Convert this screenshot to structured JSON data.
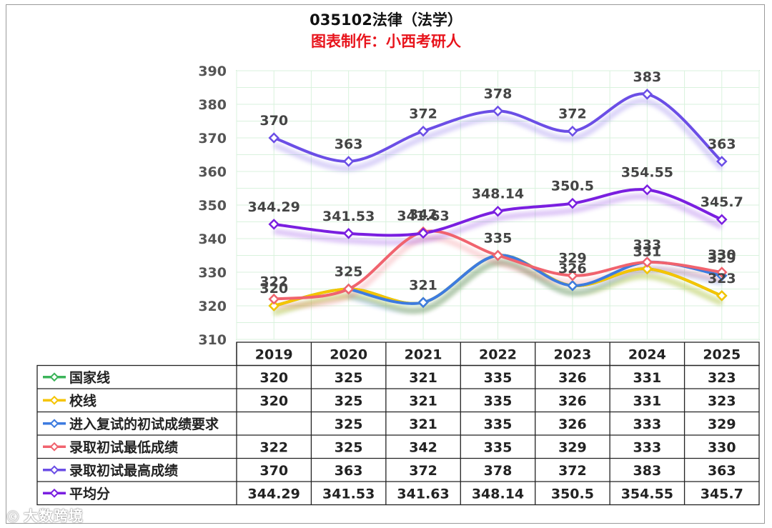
{
  "title": "035102法律（法学）",
  "subtitle": "图表制作：小西考研人",
  "watermark": "大数跨境",
  "chart_data": {
    "type": "line",
    "categories": [
      "2019",
      "2020",
      "2021",
      "2022",
      "2023",
      "2024",
      "2025"
    ],
    "ylim": [
      310,
      390
    ],
    "yticks": [
      310,
      320,
      330,
      340,
      350,
      360,
      370,
      380,
      390
    ],
    "grid": true,
    "legend": "data-table-below",
    "series": [
      {
        "name": "国家线",
        "color": "#3cb45a",
        "values": [
          320,
          325,
          321,
          335,
          326,
          331,
          323
        ],
        "labels": [
          null,
          null,
          null,
          null,
          null,
          null,
          null
        ]
      },
      {
        "name": "校线",
        "color": "#f5c400",
        "values": [
          320,
          325,
          321,
          335,
          326,
          331,
          323
        ],
        "labels": [
          "320",
          null,
          null,
          null,
          null,
          "331",
          "323"
        ]
      },
      {
        "name": "进入复试的初试成绩要求",
        "color": "#3d7be0",
        "values": [
          null,
          325,
          321,
          335,
          326,
          333,
          329
        ],
        "labels": [
          null,
          null,
          "321",
          "335",
          "326",
          "333",
          "329"
        ]
      },
      {
        "name": "录取初试最低成绩",
        "color": "#f0636e",
        "values": [
          322,
          325,
          342,
          335,
          329,
          333,
          330
        ],
        "labels": [
          "322",
          "325",
          "342",
          null,
          "329",
          null,
          "330"
        ]
      },
      {
        "name": "录取初试最高成绩",
        "color": "#6b4ee6",
        "values": [
          370,
          363,
          372,
          378,
          372,
          383,
          363
        ],
        "labels": [
          "370",
          "363",
          "372",
          "378",
          "372",
          "383",
          "363"
        ]
      },
      {
        "name": "平均分",
        "color": "#7a1fe0",
        "values": [
          344.29,
          341.53,
          341.63,
          348.14,
          350.5,
          354.55,
          345.7
        ],
        "labels": [
          "344.29",
          "341.53",
          "341.63",
          "348.14",
          "350.5",
          "354.55",
          "345.7"
        ]
      }
    ],
    "table": [
      {
        "name": "国家线",
        "cells": [
          "320",
          "325",
          "321",
          "335",
          "326",
          "331",
          "323"
        ]
      },
      {
        "name": "校线",
        "cells": [
          "320",
          "325",
          "321",
          "335",
          "326",
          "331",
          "323"
        ]
      },
      {
        "name": "进入复试的初试成绩要求",
        "cells": [
          "",
          "325",
          "321",
          "335",
          "326",
          "333",
          "329"
        ]
      },
      {
        "name": "录取初试最低成绩",
        "cells": [
          "322",
          "325",
          "342",
          "335",
          "329",
          "333",
          "330"
        ]
      },
      {
        "name": "录取初试最高成绩",
        "cells": [
          "370",
          "363",
          "372",
          "378",
          "372",
          "383",
          "363"
        ]
      },
      {
        "name": "平均分",
        "cells": [
          "344.29",
          "341.53",
          "341.63",
          "348.14",
          "350.5",
          "354.55",
          "345.7"
        ]
      }
    ]
  }
}
